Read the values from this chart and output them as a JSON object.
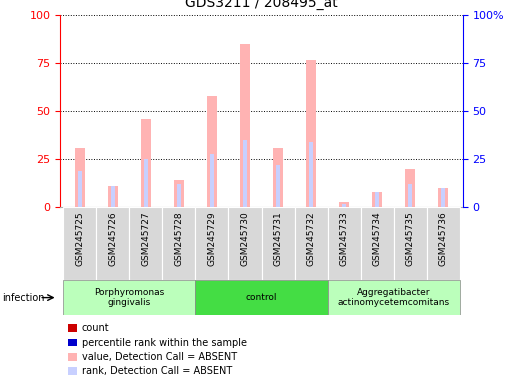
{
  "title": "GDS3211 / 208495_at",
  "samples": [
    "GSM245725",
    "GSM245726",
    "GSM245727",
    "GSM245728",
    "GSM245729",
    "GSM245730",
    "GSM245731",
    "GSM245732",
    "GSM245733",
    "GSM245734",
    "GSM245735",
    "GSM245736"
  ],
  "value_absent": [
    31,
    11,
    46,
    14,
    58,
    85,
    31,
    77,
    3,
    8,
    20,
    10
  ],
  "rank_absent": [
    19,
    11,
    25,
    12,
    28,
    35,
    22,
    34,
    2,
    8,
    12,
    10
  ],
  "groups": [
    {
      "label": "Porphyromonas\ngingivalis",
      "start": 0,
      "end": 4,
      "color": "#bbffbb"
    },
    {
      "label": "control",
      "start": 4,
      "end": 8,
      "color": "#44dd44"
    },
    {
      "label": "Aggregatibacter\nactinomycetemcomitans",
      "start": 8,
      "end": 12,
      "color": "#bbffbb"
    }
  ],
  "ylim": [
    0,
    100
  ],
  "yticks": [
    0,
    25,
    50,
    75,
    100
  ],
  "color_value_absent": "#ffb3b3",
  "color_rank_absent": "#c8d0ff",
  "color_count": "#cc0000",
  "color_percentile": "#0000cc",
  "infection_label": "infection",
  "legend_items": [
    {
      "color": "#cc0000",
      "label": "count"
    },
    {
      "color": "#0000cc",
      "label": "percentile rank within the sample"
    },
    {
      "color": "#ffb3b3",
      "label": "value, Detection Call = ABSENT"
    },
    {
      "color": "#c8d0ff",
      "label": "rank, Detection Call = ABSENT"
    }
  ]
}
